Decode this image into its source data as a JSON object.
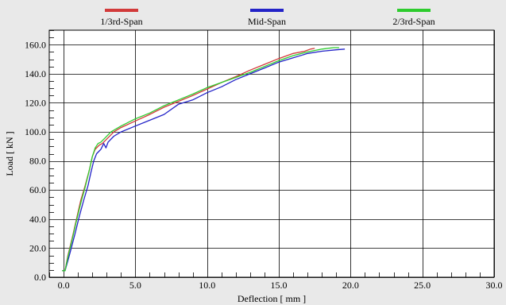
{
  "colors": {
    "background": "#e9e9e9",
    "plot_background": "#ffffff",
    "grid": "#000000",
    "series": [
      "#d23a3a",
      "#2323c8",
      "#2ecc2e"
    ]
  },
  "chart_data": {
    "type": "line",
    "title": "",
    "xlabel": "Deflection [ mm ]",
    "ylabel": "Load [ kN ]",
    "xlim": [
      -1.0,
      30.0
    ],
    "ylim": [
      0,
      170
    ],
    "x_ticks": [
      0,
      5,
      10,
      15,
      20,
      25,
      30
    ],
    "x_tick_labels": [
      "0.0",
      "5.0",
      "10.0",
      "15.0",
      "20.0",
      "25.0",
      "30.0"
    ],
    "y_ticks": [
      0,
      20,
      40,
      60,
      80,
      100,
      120,
      140,
      160
    ],
    "y_tick_labels": [
      "0.0",
      "20.0",
      "40.0",
      "60.0",
      "80.0",
      "100.0",
      "120.0",
      "140.0",
      "160.0"
    ],
    "grid": true,
    "legend_position": "top",
    "series": [
      {
        "name": "1/3rd-Span",
        "color": "#d23a3a",
        "points": [
          [
            -0.1,
            4.5
          ],
          [
            0.1,
            4.5
          ],
          [
            0.3,
            15
          ],
          [
            0.6,
            27
          ],
          [
            0.9,
            40
          ],
          [
            1.2,
            53
          ],
          [
            1.5,
            63
          ],
          [
            1.8,
            74
          ],
          [
            2.0,
            83
          ],
          [
            2.2,
            88
          ],
          [
            2.5,
            91
          ],
          [
            2.7,
            92
          ],
          [
            3.0,
            95
          ],
          [
            3.5,
            100
          ],
          [
            4.0,
            103
          ],
          [
            5.0,
            107.5
          ],
          [
            6.0,
            112
          ],
          [
            7.0,
            117
          ],
          [
            8.0,
            121
          ],
          [
            9.0,
            125
          ],
          [
            10.0,
            129.5
          ],
          [
            11.0,
            134
          ],
          [
            12.0,
            138
          ],
          [
            13.0,
            142.5
          ],
          [
            14.0,
            146.5
          ],
          [
            15.0,
            150.5
          ],
          [
            16.0,
            154
          ],
          [
            16.8,
            155.5
          ],
          [
            17.2,
            157
          ],
          [
            17.5,
            157.5
          ]
        ]
      },
      {
        "name": "Mid-Span",
        "color": "#2323c8",
        "points": [
          [
            -0.1,
            4.5
          ],
          [
            0.1,
            4.5
          ],
          [
            0.4,
            15
          ],
          [
            0.8,
            30
          ],
          [
            1.1,
            42
          ],
          [
            1.4,
            53
          ],
          [
            1.7,
            63
          ],
          [
            1.9,
            72
          ],
          [
            2.1,
            80
          ],
          [
            2.3,
            85
          ],
          [
            2.6,
            88
          ],
          [
            2.8,
            92
          ],
          [
            2.95,
            89
          ],
          [
            3.1,
            93
          ],
          [
            3.5,
            97
          ],
          [
            4.0,
            100
          ],
          [
            5.0,
            104
          ],
          [
            6.0,
            108
          ],
          [
            7.0,
            112
          ],
          [
            8.0,
            119
          ],
          [
            9.0,
            122
          ],
          [
            10.0,
            127
          ],
          [
            11.0,
            131
          ],
          [
            12.0,
            136
          ],
          [
            13.0,
            140
          ],
          [
            14.0,
            144
          ],
          [
            15.0,
            148
          ],
          [
            16.0,
            151
          ],
          [
            17.0,
            154
          ],
          [
            18.0,
            155.5
          ],
          [
            19.0,
            156.5
          ],
          [
            19.6,
            157
          ]
        ]
      },
      {
        "name": "2/3rd-Span",
        "color": "#2ecc2e",
        "points": [
          [
            -0.1,
            4.5
          ],
          [
            0.1,
            4.5
          ],
          [
            0.3,
            14
          ],
          [
            0.6,
            26
          ],
          [
            0.9,
            39
          ],
          [
            1.2,
            51
          ],
          [
            1.5,
            62
          ],
          [
            1.8,
            74
          ],
          [
            2.0,
            83
          ],
          [
            2.2,
            89
          ],
          [
            2.4,
            92
          ],
          [
            2.6,
            93
          ],
          [
            2.9,
            96
          ],
          [
            3.3,
            100
          ],
          [
            4.0,
            104
          ],
          [
            5.0,
            109
          ],
          [
            6.0,
            113
          ],
          [
            7.0,
            118
          ],
          [
            8.0,
            122
          ],
          [
            9.0,
            126
          ],
          [
            10.0,
            130.5
          ],
          [
            11.0,
            134
          ],
          [
            12.0,
            137.5
          ],
          [
            13.0,
            141
          ],
          [
            14.0,
            145
          ],
          [
            15.0,
            149
          ],
          [
            16.0,
            152.5
          ],
          [
            17.0,
            155
          ],
          [
            18.0,
            157
          ],
          [
            18.8,
            158
          ],
          [
            19.2,
            158
          ]
        ]
      }
    ]
  }
}
